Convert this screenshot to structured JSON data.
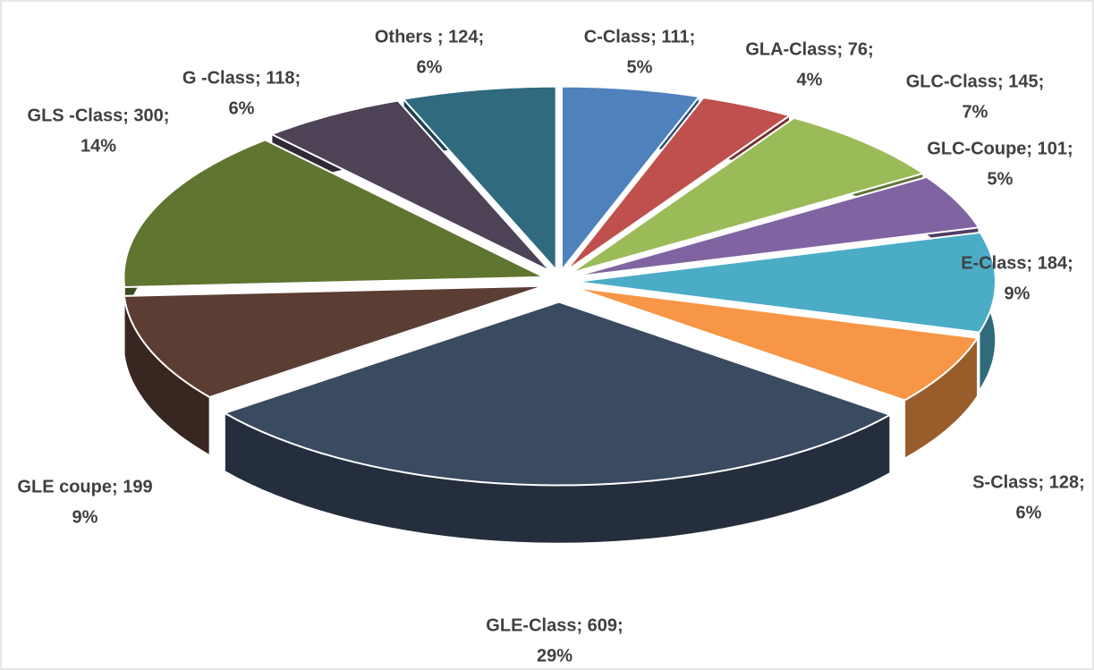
{
  "chart_data": {
    "type": "pie3d",
    "categories": [
      "C-Class",
      "GLA-Class",
      "GLC-Class",
      "GLC-Coupe",
      "E-Class",
      "S-Class",
      "GLE-Class",
      "GLE coupe",
      "GLS -Class",
      "G -Class",
      "Others "
    ],
    "values": [
      111,
      76,
      145,
      101,
      184,
      128,
      609,
      199,
      300,
      118,
      124
    ],
    "labels": [
      "C-Class; 111;",
      "GLA-Class; 76;",
      "GLC-Class; 145;",
      "GLC-Coupe; 101;",
      "E-Class; 184;",
      "S-Class; 128;",
      "GLE-Class; 609;",
      "GLE coupe; 199",
      "GLS -Class; 300;",
      "G -Class; 118;",
      "Others ; 124;"
    ],
    "percent_labels": [
      "5%",
      "4%",
      "7%",
      "5%",
      "9%",
      "6%",
      "29%",
      "9%",
      "14%",
      "6%",
      "6%"
    ],
    "colors": [
      "#4f81bd",
      "#c0504d",
      "#9bbb59",
      "#8064a2",
      "#4bacc6",
      "#f79646",
      "#3a4a60",
      "#5b3d33",
      "#5f7530",
      "#4d4256",
      "#2f6a7e"
    ]
  }
}
